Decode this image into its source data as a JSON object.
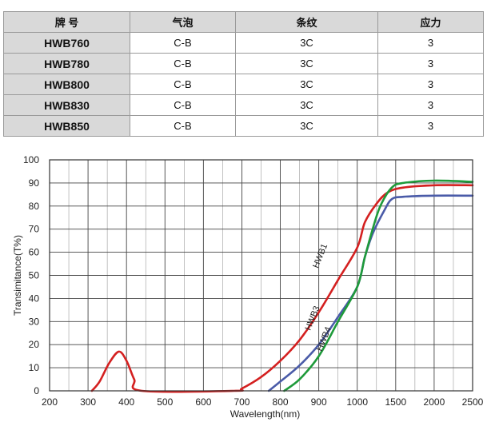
{
  "table": {
    "headers": [
      "牌 号",
      "气泡",
      "条纹",
      "应力"
    ],
    "rows": [
      {
        "model": "HWB760",
        "bubble": "C-B",
        "stripe": "3C",
        "stress": "3"
      },
      {
        "model": "HWB780",
        "bubble": "C-B",
        "stripe": "3C",
        "stress": "3"
      },
      {
        "model": "HWB800",
        "bubble": "C-B",
        "stripe": "3C",
        "stress": "3"
      },
      {
        "model": "HWB830",
        "bubble": "C-B",
        "stripe": "3C",
        "stress": "3"
      },
      {
        "model": "HWB850",
        "bubble": "C-B",
        "stripe": "3C",
        "stress": "3"
      }
    ]
  },
  "chart_data": {
    "type": "line",
    "title": "",
    "xlabel": "Wavelength(nm)",
    "ylabel": "Transimitance(T%)",
    "ylim": [
      0,
      100
    ],
    "y_ticks": [
      0,
      10,
      20,
      30,
      40,
      50,
      60,
      70,
      80,
      90,
      100
    ],
    "x_ticks": [
      200,
      300,
      400,
      500,
      600,
      700,
      800,
      900,
      1000,
      1500,
      2000,
      2500
    ],
    "x_scale_note": "piecewise axis: 100 nm per major division up to 1000, then 500 nm per division",
    "grid": true,
    "legend": "none",
    "series": [
      {
        "name": "HWB1",
        "color": "#d42020",
        "points": [
          [
            310,
            0
          ],
          [
            330,
            4
          ],
          [
            355,
            12
          ],
          [
            380,
            17
          ],
          [
            400,
            13
          ],
          [
            420,
            5
          ],
          [
            440,
            0
          ],
          [
            680,
            0
          ],
          [
            700,
            1
          ],
          [
            750,
            6
          ],
          [
            800,
            13
          ],
          [
            850,
            22
          ],
          [
            900,
            34
          ],
          [
            950,
            48
          ],
          [
            1000,
            62
          ],
          [
            1100,
            73
          ],
          [
            1250,
            81
          ],
          [
            1400,
            86
          ],
          [
            1600,
            88
          ],
          [
            2000,
            89
          ],
          [
            2500,
            89
          ]
        ],
        "label_at": [
          910,
          58
        ]
      },
      {
        "name": "HWB3",
        "color": "#4a5ba8",
        "points": [
          [
            770,
            0
          ],
          [
            800,
            4
          ],
          [
            850,
            11
          ],
          [
            900,
            20
          ],
          [
            950,
            32
          ],
          [
            1000,
            45
          ],
          [
            1100,
            58
          ],
          [
            1200,
            68
          ],
          [
            1350,
            78
          ],
          [
            1450,
            83
          ],
          [
            1600,
            84
          ],
          [
            2000,
            84.5
          ],
          [
            2500,
            84.5
          ]
        ],
        "label_at": [
          890,
          31
        ]
      },
      {
        "name": "HWB4",
        "color": "#1e9a3a",
        "points": [
          [
            810,
            0
          ],
          [
            850,
            5
          ],
          [
            900,
            15
          ],
          [
            950,
            30
          ],
          [
            1000,
            45
          ],
          [
            1100,
            58
          ],
          [
            1200,
            70
          ],
          [
            1300,
            80
          ],
          [
            1450,
            88
          ],
          [
            1600,
            90
          ],
          [
            2000,
            91
          ],
          [
            2500,
            90.5
          ]
        ],
        "label_at": [
          920,
          22
        ]
      }
    ]
  }
}
